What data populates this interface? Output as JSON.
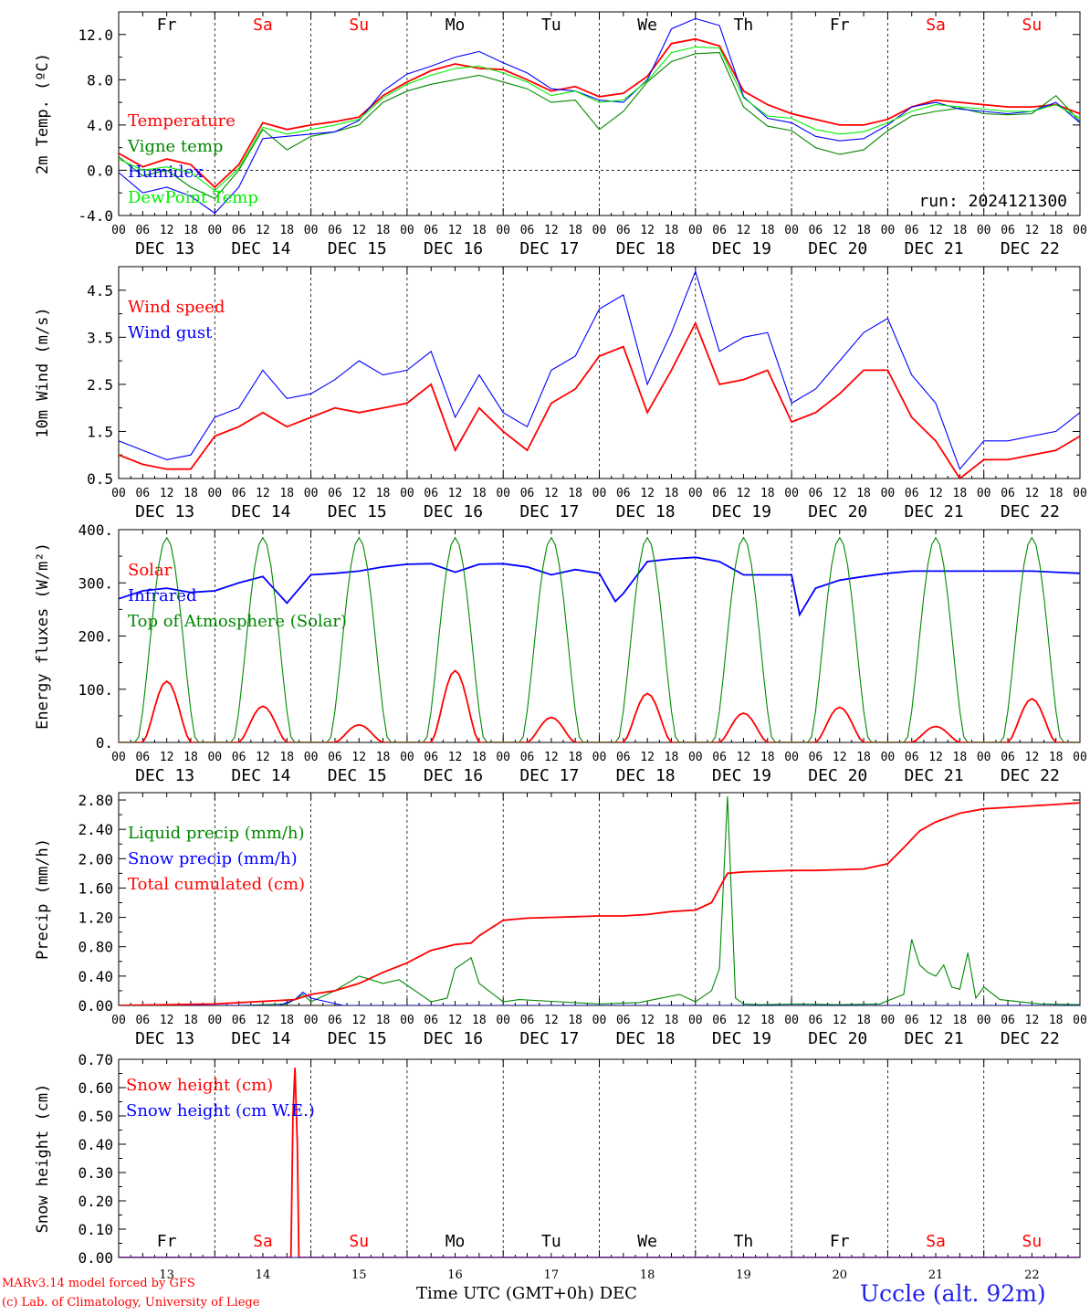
{
  "meta": {
    "model_line": "MARv3.14 model forced by GFS",
    "credit_line": "(c) Lab. of Climatology, University of Liege",
    "xaxis_title": "Time UTC (GMT+0h)",
    "xaxis_month": "DEC",
    "station": "Uccle (alt. 92m)"
  },
  "timeline": {
    "days": [
      {
        "wd": "Fr",
        "date": "13",
        "label": "DEC 13",
        "weekend": false
      },
      {
        "wd": "Sa",
        "date": "14",
        "label": "DEC 14",
        "weekend": true
      },
      {
        "wd": "Su",
        "date": "15",
        "label": "DEC 15",
        "weekend": true
      },
      {
        "wd": "Mo",
        "date": "16",
        "label": "DEC 16",
        "weekend": false
      },
      {
        "wd": "Tu",
        "date": "17",
        "label": "DEC 17",
        "weekend": false
      },
      {
        "wd": "We",
        "date": "18",
        "label": "DEC 18",
        "weekend": false
      },
      {
        "wd": "Th",
        "date": "19",
        "label": "DEC 19",
        "weekend": false
      },
      {
        "wd": "Fr",
        "date": "20",
        "label": "DEC 20",
        "weekend": false
      },
      {
        "wd": "Sa",
        "date": "21",
        "label": "DEC 21",
        "weekend": true
      },
      {
        "wd": "Su",
        "date": "22",
        "label": "DEC 22",
        "weekend": true
      }
    ],
    "hour_ticks": [
      "00",
      "06",
      "12",
      "18"
    ]
  },
  "colors": {
    "red": "#ff0000",
    "green": "#008800",
    "blue": "#0000ff",
    "lime": "#00ee00",
    "weekend": "#ff0000",
    "weekday": "#000000"
  },
  "chart_data": [
    {
      "id": "temp",
      "type": "line",
      "ylabel": "2m Temp. (ºC)",
      "ylim": [
        -4,
        14
      ],
      "yticks": [
        "-4.0",
        "0.0",
        "4.0",
        "8.0",
        "12.0"
      ],
      "ytick_values": [
        -4,
        0,
        4,
        8,
        12
      ],
      "zero_line": true,
      "show_weekdays_top": true,
      "annotation": "run: 2024121300",
      "x_unit": "hours since DEC 13 00 UTC",
      "series": [
        {
          "name": "Temperature",
          "color": "red",
          "x": [
            0,
            6,
            12,
            18,
            24,
            30,
            36,
            42,
            48,
            54,
            60,
            66,
            72,
            78,
            84,
            90,
            96,
            102,
            108,
            114,
            120,
            126,
            132,
            138,
            144,
            150,
            156,
            162,
            168,
            174,
            180,
            186,
            192,
            198,
            204,
            210,
            216,
            222,
            228,
            234,
            240
          ],
          "y": [
            1.5,
            0.3,
            1.0,
            0.5,
            -1.5,
            0.5,
            4.2,
            3.6,
            4.0,
            4.3,
            4.7,
            6.6,
            7.8,
            8.8,
            9.4,
            9.0,
            8.9,
            8.0,
            7.0,
            7.4,
            6.5,
            6.8,
            8.3,
            11.2,
            11.6,
            11.0,
            7.0,
            5.8,
            5.0,
            4.5,
            4.0,
            4.0,
            4.5,
            5.6,
            6.2,
            6.0,
            5.8,
            5.6,
            5.6,
            5.8,
            5.0
          ]
        },
        {
          "name": "Vigne temp",
          "color": "green",
          "x": [
            0,
            6,
            12,
            18,
            24,
            30,
            36,
            42,
            48,
            54,
            60,
            66,
            72,
            78,
            84,
            90,
            96,
            102,
            108,
            114,
            120,
            126,
            132,
            138,
            144,
            150,
            156,
            162,
            168,
            174,
            180,
            186,
            192,
            198,
            204,
            210,
            216,
            222,
            228,
            234,
            240
          ],
          "y": [
            1.2,
            -0.5,
            0.0,
            -1.5,
            -2.5,
            0.0,
            3.6,
            1.8,
            3.0,
            3.4,
            4.0,
            6.0,
            7.0,
            7.6,
            8.0,
            8.4,
            7.8,
            7.2,
            6.0,
            6.2,
            3.6,
            5.2,
            7.8,
            9.6,
            10.3,
            10.4,
            5.6,
            3.9,
            3.5,
            2.0,
            1.4,
            1.8,
            3.5,
            4.8,
            5.2,
            5.5,
            5.0,
            4.9,
            5.0,
            6.6,
            4.3
          ]
        },
        {
          "name": "Humidex",
          "color": "blue",
          "x": [
            0,
            6,
            12,
            18,
            24,
            30,
            36,
            42,
            48,
            54,
            60,
            66,
            72,
            78,
            84,
            90,
            96,
            102,
            108,
            114,
            120,
            126,
            132,
            138,
            144,
            150,
            156,
            162,
            168,
            174,
            180,
            186,
            192,
            198,
            204,
            210,
            216,
            222,
            228,
            234,
            240
          ],
          "y": [
            -0.2,
            -2.0,
            -1.5,
            -2.3,
            -3.8,
            -1.5,
            2.8,
            3.0,
            3.2,
            3.4,
            4.4,
            7.0,
            8.5,
            9.2,
            10.0,
            10.5,
            9.5,
            8.6,
            7.2,
            7.0,
            6.2,
            6.0,
            8.0,
            12.5,
            13.4,
            12.8,
            6.5,
            4.6,
            4.2,
            3.0,
            2.6,
            2.8,
            4.0,
            5.6,
            6.0,
            5.4,
            5.2,
            5.0,
            5.2,
            6.0,
            4.2
          ]
        },
        {
          "name": "DewPoint Temp",
          "color": "lime",
          "x": [
            0,
            6,
            12,
            18,
            24,
            30,
            36,
            42,
            48,
            54,
            60,
            66,
            72,
            78,
            84,
            90,
            96,
            102,
            108,
            114,
            120,
            126,
            132,
            138,
            144,
            150,
            156,
            162,
            168,
            174,
            180,
            186,
            192,
            198,
            204,
            210,
            216,
            222,
            228,
            234,
            240
          ],
          "y": [
            1.0,
            0.0,
            0.3,
            -0.2,
            -1.8,
            0.2,
            3.8,
            3.2,
            3.6,
            4.0,
            4.5,
            6.4,
            7.6,
            8.4,
            9.0,
            9.2,
            8.6,
            7.8,
            6.6,
            7.0,
            6.0,
            6.2,
            7.9,
            10.4,
            10.9,
            10.8,
            6.4,
            4.8,
            4.6,
            3.6,
            3.2,
            3.4,
            4.2,
            5.2,
            5.8,
            5.6,
            5.4,
            5.2,
            5.2,
            5.8,
            4.6
          ]
        }
      ]
    },
    {
      "id": "wind",
      "type": "line",
      "ylabel": "10m Wind (m/s)",
      "ylim": [
        0.5,
        5.0
      ],
      "yticks": [
        "0.5",
        "1.5",
        "2.5",
        "3.5",
        "4.5"
      ],
      "ytick_values": [
        0.5,
        1.5,
        2.5,
        3.5,
        4.5
      ],
      "x_unit": "hours since DEC 13 00 UTC",
      "series": [
        {
          "name": "Wind speed",
          "color": "red",
          "x": [
            0,
            6,
            12,
            18,
            24,
            30,
            36,
            42,
            48,
            54,
            60,
            66,
            72,
            78,
            84,
            90,
            96,
            102,
            108,
            114,
            120,
            126,
            132,
            138,
            144,
            150,
            156,
            162,
            168,
            174,
            180,
            186,
            192,
            198,
            204,
            210,
            216,
            222,
            228,
            234,
            240
          ],
          "y": [
            1.0,
            0.8,
            0.7,
            0.7,
            1.4,
            1.6,
            1.9,
            1.6,
            1.8,
            2.0,
            1.9,
            2.0,
            2.1,
            2.5,
            1.1,
            2.0,
            1.5,
            1.1,
            2.1,
            2.4,
            3.1,
            3.3,
            1.9,
            2.8,
            3.8,
            2.5,
            2.6,
            2.8,
            1.7,
            1.9,
            2.3,
            2.8,
            2.8,
            1.8,
            1.3,
            0.5,
            0.9,
            0.9,
            1.0,
            1.1,
            1.4
          ]
        },
        {
          "name": "Wind gust",
          "color": "blue",
          "x": [
            0,
            6,
            12,
            18,
            24,
            30,
            36,
            42,
            48,
            54,
            60,
            66,
            72,
            78,
            84,
            90,
            96,
            102,
            108,
            114,
            120,
            126,
            132,
            138,
            144,
            150,
            156,
            162,
            168,
            174,
            180,
            186,
            192,
            198,
            204,
            210,
            216,
            222,
            228,
            234,
            240
          ],
          "y": [
            1.3,
            1.1,
            0.9,
            1.0,
            1.8,
            2.0,
            2.8,
            2.2,
            2.3,
            2.6,
            3.0,
            2.7,
            2.8,
            3.2,
            1.8,
            2.7,
            1.9,
            1.6,
            2.8,
            3.1,
            4.1,
            4.4,
            2.5,
            3.6,
            4.9,
            3.2,
            3.5,
            3.6,
            2.1,
            2.4,
            3.0,
            3.6,
            3.9,
            2.7,
            2.1,
            0.7,
            1.3,
            1.3,
            1.4,
            1.5,
            1.9
          ]
        }
      ]
    },
    {
      "id": "energy",
      "type": "line",
      "ylabel": "Energy fluxes (W/m²)",
      "ylim": [
        0,
        400
      ],
      "yticks": [
        "0.",
        "100.",
        "200.",
        "300.",
        "400."
      ],
      "ytick_values": [
        0,
        100,
        200,
        300,
        400
      ],
      "x_unit": "hours since DEC 13 00 UTC",
      "series": [
        {
          "name": "Solar",
          "color": "red",
          "daily_peaks": [
            115,
            68,
            33,
            135,
            47,
            92,
            55,
            66,
            30,
            82
          ]
        },
        {
          "name": "Infrared",
          "color": "blue",
          "x": [
            0,
            6,
            12,
            18,
            24,
            30,
            36,
            42,
            48,
            54,
            60,
            66,
            72,
            78,
            84,
            90,
            96,
            102,
            108,
            114,
            120,
            124,
            126,
            132,
            138,
            144,
            150,
            156,
            162,
            168,
            170,
            174,
            180,
            186,
            192,
            198,
            204,
            210,
            216,
            222,
            228,
            234,
            240
          ],
          "y": [
            270,
            285,
            290,
            282,
            285,
            300,
            312,
            262,
            315,
            318,
            322,
            330,
            335,
            336,
            320,
            335,
            336,
            330,
            315,
            325,
            318,
            265,
            280,
            340,
            345,
            348,
            340,
            315,
            315,
            315,
            240,
            290,
            305,
            312,
            318,
            322,
            322,
            322,
            322,
            322,
            322,
            320,
            318
          ]
        },
        {
          "name": "Top of Atmosphere (Solar)",
          "color": "green",
          "daily_peak": 385
        }
      ]
    },
    {
      "id": "precip",
      "type": "line",
      "ylabel": "Precip (mm/h)",
      "ylim": [
        0,
        2.9
      ],
      "yticks": [
        "0.00",
        "0.40",
        "0.80",
        "1.20",
        "1.60",
        "2.00",
        "2.40",
        "2.80"
      ],
      "ytick_values": [
        0,
        0.4,
        0.8,
        1.2,
        1.6,
        2.0,
        2.4,
        2.8
      ],
      "x_unit": "hours since DEC 13 00 UTC",
      "series": [
        {
          "name": "Liquid precip (mm/h)",
          "color": "green",
          "x": [
            0,
            30,
            42,
            46,
            48,
            54,
            60,
            66,
            70,
            74,
            78,
            82,
            84,
            88,
            90,
            96,
            100,
            110,
            120,
            130,
            140,
            144,
            148,
            150,
            152,
            154,
            156,
            160,
            170,
            180,
            190,
            196,
            198,
            200,
            202,
            204,
            206,
            208,
            210,
            212,
            214,
            216,
            220,
            230,
            240
          ],
          "y": [
            0,
            0,
            0.02,
            0.15,
            0.05,
            0.2,
            0.4,
            0.3,
            0.35,
            0.2,
            0.05,
            0.1,
            0.5,
            0.65,
            0.3,
            0.05,
            0.08,
            0.05,
            0.02,
            0.04,
            0.15,
            0.05,
            0.2,
            0.5,
            2.85,
            0.1,
            0.02,
            0.01,
            0.02,
            0.01,
            0.02,
            0.15,
            0.9,
            0.55,
            0.45,
            0.4,
            0.55,
            0.25,
            0.22,
            0.72,
            0.1,
            0.25,
            0.08,
            0.02,
            0.01
          ]
        },
        {
          "name": "Snow precip (mm/h)",
          "color": "blue",
          "x": [
            0,
            40,
            44,
            46,
            48,
            52,
            56,
            240
          ],
          "y": [
            0,
            0,
            0.08,
            0.18,
            0.1,
            0.05,
            0.0,
            0
          ]
        },
        {
          "name": "Total cumulated (cm)",
          "color": "red",
          "x": [
            0,
            24,
            44,
            48,
            54,
            60,
            66,
            72,
            78,
            84,
            88,
            90,
            96,
            102,
            108,
            114,
            120,
            126,
            132,
            138,
            144,
            148,
            150,
            152,
            156,
            162,
            168,
            174,
            180,
            186,
            192,
            196,
            200,
            204,
            210,
            216,
            222,
            228,
            234,
            240
          ],
          "y": [
            0,
            0.02,
            0.08,
            0.15,
            0.2,
            0.3,
            0.45,
            0.58,
            0.75,
            0.83,
            0.85,
            0.95,
            1.16,
            1.19,
            1.2,
            1.21,
            1.22,
            1.22,
            1.24,
            1.28,
            1.3,
            1.4,
            1.6,
            1.8,
            1.82,
            1.83,
            1.84,
            1.84,
            1.85,
            1.86,
            1.93,
            2.15,
            2.38,
            2.5,
            2.62,
            2.68,
            2.7,
            2.72,
            2.74,
            2.76
          ]
        }
      ]
    },
    {
      "id": "snow",
      "type": "line",
      "ylabel": "Snow height (cm)",
      "ylim": [
        0,
        0.7
      ],
      "yticks": [
        "0.00",
        "0.10",
        "0.20",
        "0.30",
        "0.40",
        "0.50",
        "0.60",
        "0.70"
      ],
      "ytick_values": [
        0,
        0.1,
        0.2,
        0.3,
        0.4,
        0.5,
        0.6,
        0.7
      ],
      "show_weekdays_bottom": true,
      "x_unit": "hours since DEC 13 00 UTC",
      "series": [
        {
          "name": "Snow height (cm)",
          "color": "red",
          "x": [
            0,
            43.0,
            43.5,
            44.0,
            44.6,
            45.0,
            240
          ],
          "y": [
            0,
            0,
            0.5,
            0.67,
            0.4,
            0,
            0
          ]
        },
        {
          "name": "Snow height (cm W.E.)",
          "color": "blue",
          "x": [
            0,
            240
          ],
          "y": [
            0,
            0
          ]
        }
      ]
    }
  ]
}
